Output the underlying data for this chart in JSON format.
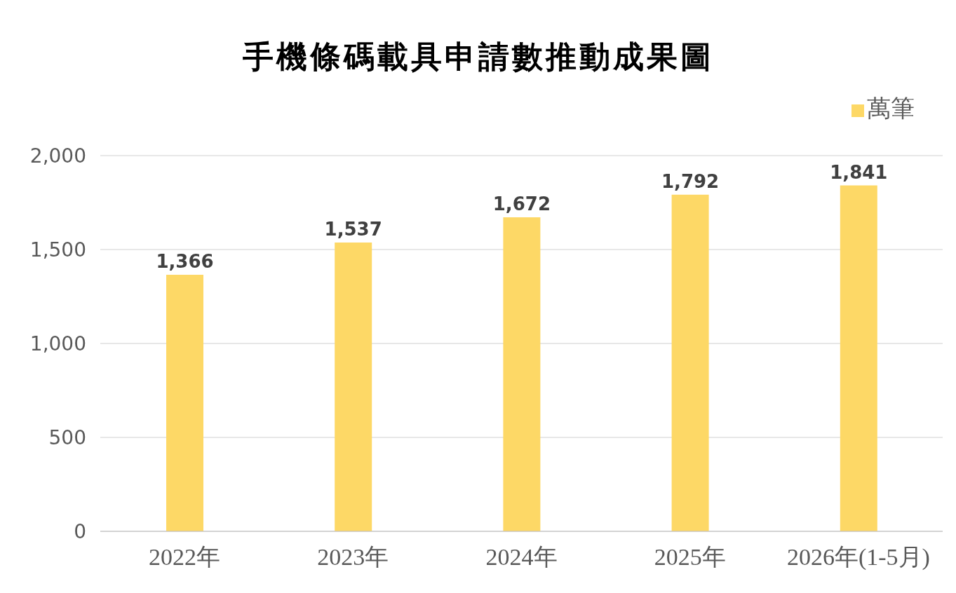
{
  "chart_data": {
    "type": "bar",
    "title": "手機條碼載具申請數推動成果圖",
    "categories": [
      "2022年",
      "2023年",
      "2024年",
      "2025年",
      "2026年(1-5月)"
    ],
    "series": [
      {
        "name": "萬筆",
        "color": "#fdd866",
        "values": [
          1366,
          1537,
          1672,
          1792,
          1841
        ],
        "value_labels": [
          "1,366",
          "1,537",
          "1,672",
          "1,792",
          "1,841"
        ]
      }
    ],
    "ylim": [
      0,
      2000
    ],
    "yticks": [
      0,
      500,
      {
        "value": 1000,
        "label": "1,000"
      },
      {
        "value": 1500,
        "label": "1,500"
      },
      {
        "value": 2000,
        "label": "2,000"
      }
    ],
    "grid": "y",
    "legend": "top right"
  }
}
